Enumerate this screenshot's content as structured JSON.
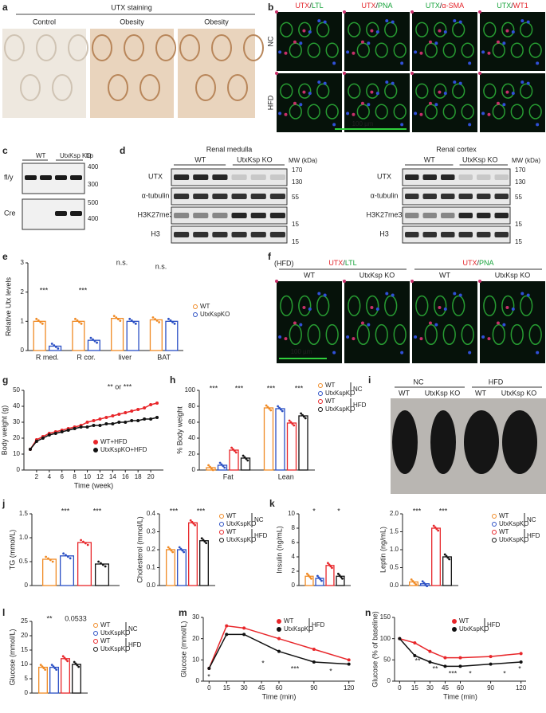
{
  "panel_labels": [
    "a",
    "b",
    "c",
    "d",
    "e",
    "f",
    "g",
    "h",
    "i",
    "j",
    "k",
    "l",
    "m",
    "n"
  ],
  "a": {
    "title": "UTX staining",
    "columns": [
      "Control",
      "Obesity",
      "Obesity"
    ]
  },
  "b": {
    "columns": [
      {
        "parts": [
          "UTX",
          "/",
          "LTL"
        ],
        "colors": [
          "#e4252b",
          "#222222",
          "#16a33a"
        ]
      },
      {
        "parts": [
          "UTX",
          "/",
          "PNA"
        ],
        "colors": [
          "#e4252b",
          "#222222",
          "#16a33a"
        ]
      },
      {
        "parts": [
          "UTX",
          "/",
          "α-SMA"
        ],
        "colors": [
          "#16a33a",
          "#222222",
          "#e4252b"
        ]
      },
      {
        "parts": [
          "UTX",
          "/",
          "WT1"
        ],
        "colors": [
          "#16a33a",
          "#222222",
          "#e4252b"
        ]
      }
    ],
    "rows": [
      "NC",
      "HFD"
    ],
    "scale": "100 µm"
  },
  "c": {
    "header": [
      "WT",
      "UtxKsp KO",
      "bp"
    ],
    "rows": [
      "fl/y",
      "Cre"
    ],
    "markers": [
      400,
      300,
      500,
      400
    ]
  },
  "d": {
    "blots": [
      {
        "title": "Renal medulla",
        "header": [
          "WT",
          "UtxKsp KO",
          "MW (kDa)"
        ]
      },
      {
        "title": "Renal cortex",
        "header": [
          "WT",
          "UtxKsp KO",
          "MW (kDa)"
        ]
      }
    ],
    "rows": [
      "UTX",
      "α-tubulin",
      "H3K27me3",
      "H3"
    ],
    "markers": [
      170,
      130,
      55,
      15,
      15
    ]
  },
  "f": {
    "condition": "(HFD)",
    "groups": [
      {
        "parts": [
          "UTX",
          "/",
          "LTL"
        ],
        "colors": [
          "#e4252b",
          "#222222",
          "#16a33a"
        ]
      },
      {
        "parts": [
          "UTX",
          "/",
          "PNA"
        ],
        "colors": [
          "#e4252b",
          "#222222",
          "#16a33a"
        ]
      }
    ],
    "columns": [
      "WT",
      "UtxKsp KO",
      "WT",
      "UtxKsp KO"
    ],
    "scale": "100 µm"
  },
  "i": {
    "groups": [
      "NC",
      "HFD"
    ],
    "columns": [
      "WT",
      "UtxKsp KO",
      "WT",
      "UtxKsp KO"
    ]
  },
  "chart_data": [
    {
      "type": "bar",
      "ylabel": "Relative Utx levels",
      "categories": [
        "R med.",
        "R cor.",
        "liver",
        "BAT"
      ],
      "series": [
        {
          "name": "WT",
          "color": "#f08a24",
          "values": [
            1.0,
            1.0,
            1.1,
            1.05
          ]
        },
        {
          "name": "UtxKspKO",
          "color": "#2a4fc4",
          "values": [
            0.15,
            0.35,
            1.0,
            1.0
          ]
        }
      ],
      "ylim": [
        0,
        3
      ],
      "yticks": [
        0,
        1,
        2,
        3
      ],
      "annotations": [
        "***",
        "***",
        "n.s.",
        "n.s."
      ],
      "legend": "right"
    },
    {
      "type": "line",
      "xlabel": "Time (week)",
      "ylabel": "Body weight (g)",
      "x": [
        1,
        2,
        3,
        4,
        5,
        6,
        7,
        8,
        9,
        10,
        11,
        12,
        13,
        14,
        15,
        16,
        17,
        18,
        19,
        20,
        21
      ],
      "series": [
        {
          "name": "WT+HFD",
          "color": "#e8262a",
          "values": [
            13,
            19,
            21,
            23,
            24,
            25,
            26,
            27,
            28,
            30,
            31,
            32,
            33,
            34,
            35,
            36,
            37,
            38,
            39,
            41,
            42
          ]
        },
        {
          "name": "UtxKspKO+HFD",
          "color": "#111111",
          "values": [
            13,
            18,
            20,
            22,
            23,
            24,
            25,
            26,
            27,
            27,
            28,
            28,
            29,
            29,
            30,
            30,
            31,
            31,
            32,
            32,
            33
          ]
        }
      ],
      "xlim": [
        0,
        22
      ],
      "xticks": [
        2,
        4,
        6,
        8,
        10,
        12,
        14,
        16,
        18,
        20
      ],
      "ylim": [
        0,
        50
      ],
      "yticks": [
        0,
        10,
        20,
        30,
        40,
        50
      ],
      "annotations": [
        "** or ***"
      ],
      "legend": "lower right"
    },
    {
      "type": "bar",
      "ylabel": "% Body weight",
      "categories": [
        "Fat",
        "Lean"
      ],
      "series": [
        {
          "name": "WT",
          "color": "#f08a24",
          "values": [
            3,
            78
          ]
        },
        {
          "name": "UtxKspKO",
          "color": "#2a4fc4",
          "values": [
            6,
            77
          ]
        },
        {
          "name": "WT",
          "color": "#e8262a",
          "values": [
            25,
            59
          ]
        },
        {
          "name": "UtxKspKO",
          "color": "#111111",
          "values": [
            15,
            68
          ]
        }
      ],
      "legend_groups": [
        "NC",
        "HFD"
      ],
      "ylim": [
        0,
        100
      ],
      "yticks": [
        0,
        20,
        40,
        60,
        80,
        100
      ],
      "annotations": [
        "***",
        "***",
        "***",
        "***"
      ],
      "legend": "right"
    },
    {
      "type": "bar",
      "ylabel": "TG (mmol/L)",
      "series": [
        {
          "color": "#f08a24",
          "values": [
            0.55
          ]
        },
        {
          "color": "#2a4fc4",
          "values": [
            0.62
          ]
        },
        {
          "color": "#e8262a",
          "values": [
            0.9
          ]
        },
        {
          "color": "#111111",
          "values": [
            0.45
          ]
        }
      ],
      "ylim": [
        0,
        1.5
      ],
      "yticks": [
        0,
        0.5,
        {
          "value": 1,
          "label": "1.0"
        },
        1.5
      ],
      "annotations": [
        "***",
        "***"
      ]
    },
    {
      "type": "bar",
      "ylabel": "Cholesterol (mmol/L)",
      "series": [
        {
          "name": "WT",
          "color": "#f08a24",
          "values": [
            0.2
          ]
        },
        {
          "name": "UtxKspKO",
          "color": "#2a4fc4",
          "values": [
            0.2
          ]
        },
        {
          "name": "WT",
          "color": "#e8262a",
          "values": [
            0.35
          ]
        },
        {
          "name": "UtxKspKO",
          "color": "#111111",
          "values": [
            0.25
          ]
        }
      ],
      "legend_groups": [
        "NC",
        "HFD"
      ],
      "ylim": [
        0,
        0.4
      ],
      "yticks": [
        {
          "value": 0,
          "label": "0.0"
        },
        0.1,
        0.2,
        0.3,
        0.4
      ],
      "annotations": [
        "***",
        "***"
      ],
      "legend": "right"
    },
    {
      "type": "bar",
      "ylabel": "Insulin (ng/mL)",
      "series": [
        {
          "color": "#f08a24",
          "values": [
            1.3
          ]
        },
        {
          "color": "#2a4fc4",
          "values": [
            1.0
          ]
        },
        {
          "color": "#e8262a",
          "values": [
            2.8
          ]
        },
        {
          "color": "#111111",
          "values": [
            1.3
          ]
        }
      ],
      "ylim": [
        0,
        10
      ],
      "yticks": [
        0,
        2,
        4,
        6,
        8,
        10
      ],
      "annotations": [
        "*",
        "*"
      ]
    },
    {
      "type": "bar",
      "ylabel": "Leptin (ng/mL)",
      "series": [
        {
          "name": "WT",
          "color": "#f08a24",
          "values": [
            0.1
          ]
        },
        {
          "name": "UtxKspKO",
          "color": "#2a4fc4",
          "values": [
            0.05
          ]
        },
        {
          "name": "WT",
          "color": "#e8262a",
          "values": [
            1.6
          ]
        },
        {
          "name": "UtxKspKO",
          "color": "#111111",
          "values": [
            0.8
          ]
        }
      ],
      "legend_groups": [
        "NC",
        "HFD"
      ],
      "ylim": [
        0,
        2
      ],
      "yticks": [
        {
          "value": 0,
          "label": "0.0"
        },
        0.5,
        {
          "value": 1,
          "label": "1.0"
        },
        1.5,
        {
          "value": 2,
          "label": "2.0"
        }
      ],
      "annotations": [
        "***",
        "***"
      ],
      "legend": "right"
    },
    {
      "type": "bar",
      "ylabel": "Glucose (mmol/L)",
      "series": [
        {
          "name": "WT",
          "color": "#f08a24",
          "values": [
            9
          ]
        },
        {
          "name": "UtxKspKO",
          "color": "#2a4fc4",
          "values": [
            9
          ]
        },
        {
          "name": "WT",
          "color": "#e8262a",
          "values": [
            12
          ]
        },
        {
          "name": "UtxKspKO",
          "color": "#111111",
          "values": [
            10
          ]
        }
      ],
      "legend_groups": [
        "NC",
        "HFD"
      ],
      "ylim": [
        0,
        25
      ],
      "yticks": [
        0,
        5,
        10,
        15,
        20,
        25
      ],
      "annotations": [
        "**",
        "0.0533"
      ],
      "legend": "right"
    },
    {
      "type": "line",
      "xlabel": "Time (min)",
      "ylabel": "Glucose (mmol/L)",
      "x": [
        0,
        15,
        30,
        60,
        90,
        120
      ],
      "series": [
        {
          "name": "WT",
          "color": "#e8262a",
          "values": [
            6,
            26,
            25,
            20,
            15,
            10
          ]
        },
        {
          "name": "UtxKspKO",
          "color": "#111111",
          "values": [
            6,
            22,
            22,
            14,
            9,
            8
          ]
        }
      ],
      "legend_groups": [
        "HFD"
      ],
      "xlim": [
        -5,
        125
      ],
      "xticks": [
        0,
        15,
        30,
        45,
        60,
        90,
        120
      ],
      "ylim": [
        0,
        30
      ],
      "yticks": [
        0,
        10,
        20,
        30
      ],
      "annotations": [
        "*",
        "*",
        "***",
        "*"
      ],
      "legend": "upper right"
    },
    {
      "type": "line",
      "xlabel": "Time (min)",
      "ylabel": "Glucose (% of baseline)",
      "x": [
        0,
        15,
        30,
        45,
        60,
        90,
        120
      ],
      "series": [
        {
          "name": "WT",
          "color": "#e8262a",
          "values": [
            100,
            90,
            70,
            55,
            55,
            58,
            65
          ]
        },
        {
          "name": "UtxKspKO",
          "color": "#111111",
          "values": [
            100,
            60,
            45,
            35,
            35,
            40,
            45
          ]
        }
      ],
      "legend_groups": [
        "HFD"
      ],
      "xlim": [
        -5,
        125
      ],
      "xticks": [
        0,
        15,
        30,
        45,
        60,
        90,
        120
      ],
      "ylim": [
        0,
        150
      ],
      "yticks": [
        0,
        50,
        100,
        150
      ],
      "annotations": [
        "**",
        "**",
        "***",
        "*",
        "*",
        "*"
      ],
      "legend": "upper right"
    }
  ]
}
